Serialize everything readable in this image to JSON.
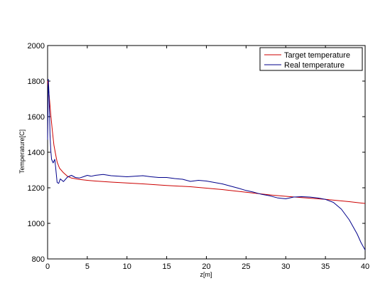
{
  "chart_data": {
    "type": "line",
    "title": "",
    "xlabel": "z[m]",
    "ylabel": "Temperature[C]",
    "xlim": [
      0,
      40
    ],
    "ylim": [
      800,
      2000
    ],
    "xticks": [
      0,
      5,
      10,
      15,
      20,
      25,
      30,
      35,
      40
    ],
    "yticks": [
      800,
      1000,
      1200,
      1400,
      1600,
      1800,
      2000
    ],
    "grid": false,
    "legend_position": "top-right",
    "series": [
      {
        "name": "Target temperature",
        "color": "#cc0000",
        "x": [
          0,
          0.2,
          0.4,
          0.6,
          0.8,
          1.0,
          1.2,
          1.5,
          2,
          2.5,
          3,
          4,
          5,
          6,
          8,
          10,
          12,
          15,
          18,
          20,
          22,
          25,
          28,
          30,
          32,
          35,
          38,
          40
        ],
        "y": [
          1800,
          1720,
          1610,
          1520,
          1440,
          1390,
          1345,
          1310,
          1285,
          1265,
          1255,
          1247,
          1242,
          1238,
          1232,
          1227,
          1222,
          1213,
          1206,
          1198,
          1190,
          1175,
          1160,
          1152,
          1145,
          1135,
          1122,
          1112
        ]
      },
      {
        "name": "Real temperature",
        "color": "#00008b",
        "x": [
          0,
          0.1,
          0.2,
          0.3,
          0.4,
          0.5,
          0.7,
          0.9,
          1.0,
          1.2,
          1.4,
          1.6,
          2.0,
          2.5,
          3.0,
          3.5,
          4.0,
          4.5,
          5.0,
          5.5,
          6.0,
          7.0,
          8.0,
          9.0,
          10,
          11,
          12,
          13,
          14,
          15,
          16,
          17,
          18,
          19,
          20,
          21,
          22,
          23,
          24,
          25,
          26,
          27,
          28,
          29,
          30,
          31,
          32,
          33,
          34,
          35,
          36,
          37,
          38,
          39,
          39.5,
          40
        ],
        "y": [
          1470,
          1810,
          1710,
          1500,
          1410,
          1360,
          1340,
          1360,
          1320,
          1230,
          1225,
          1250,
          1235,
          1260,
          1270,
          1258,
          1255,
          1262,
          1270,
          1265,
          1270,
          1275,
          1268,
          1265,
          1262,
          1265,
          1268,
          1262,
          1258,
          1258,
          1252,
          1248,
          1236,
          1242,
          1238,
          1230,
          1222,
          1210,
          1198,
          1185,
          1175,
          1163,
          1155,
          1143,
          1138,
          1148,
          1150,
          1148,
          1143,
          1135,
          1118,
          1080,
          1020,
          940,
          890,
          850
        ]
      }
    ]
  }
}
